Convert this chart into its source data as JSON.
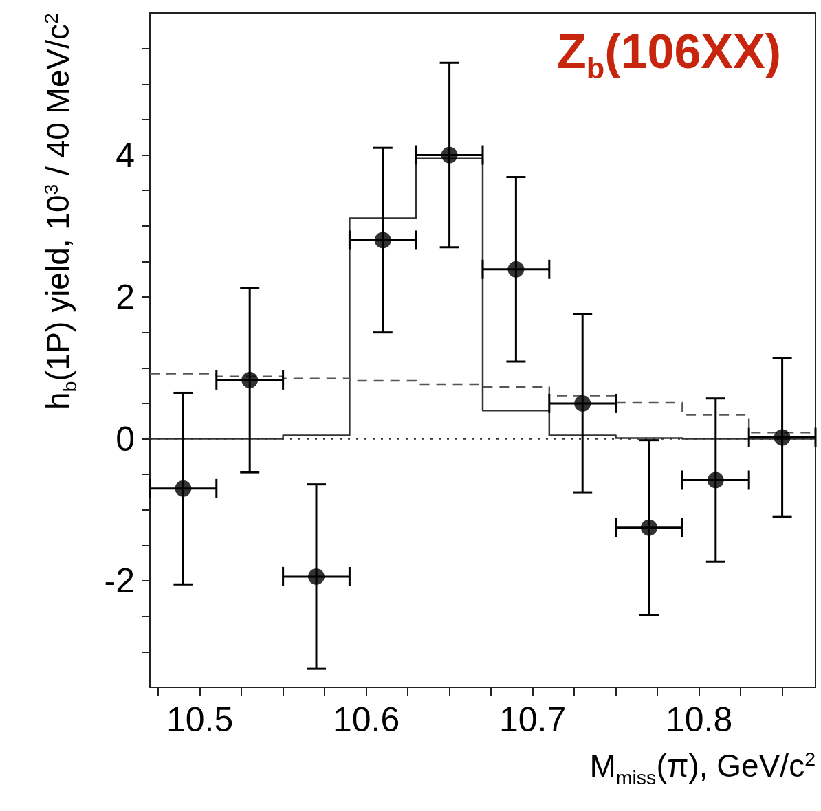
{
  "chart_data": {
    "type": "scatter",
    "xlabel": "M$_{miss}$(π), GeV/c$^{2}$",
    "ylabel": "h$_{b}$(1P) yield, 10$^{3}$ / 40 MeV/c$^{2}$",
    "annotations": [
      "Z$_{b}$(106XX)"
    ],
    "xlim": [
      10.47,
      10.87
    ],
    "ylim": [
      -3.5,
      6
    ],
    "xticks": [
      {
        "value": 10.475,
        "label": null
      },
      10.5,
      {
        "value": 10.525,
        "label": null
      },
      {
        "value": 10.55,
        "label": null
      },
      {
        "value": 10.575,
        "label": null
      },
      10.6,
      {
        "value": 10.625,
        "label": null
      },
      {
        "value": 10.65,
        "label": null
      },
      {
        "value": 10.675,
        "label": null
      },
      10.7,
      {
        "value": 10.725,
        "label": null
      },
      {
        "value": 10.75,
        "label": null
      },
      {
        "value": 10.775,
        "label": null
      },
      10.8,
      {
        "value": 10.825,
        "label": null
      },
      {
        "value": 10.85,
        "label": null
      }
    ],
    "yticks": [
      {
        "value": -3,
        "label": null
      },
      {
        "value": -2.5,
        "label": null
      },
      -2,
      {
        "value": -1.5,
        "label": null
      },
      {
        "value": -1,
        "label": null
      },
      {
        "value": -0.5,
        "label": null
      },
      0,
      {
        "value": 0.5,
        "label": null
      },
      {
        "value": 1,
        "label": null
      },
      {
        "value": 1.5,
        "label": null
      },
      2,
      {
        "value": 2.5,
        "label": null
      },
      {
        "value": 3,
        "label": null
      },
      {
        "value": 3.5,
        "label": null
      },
      4,
      {
        "value": 4.5,
        "label": null
      },
      {
        "value": 5,
        "label": null
      },
      {
        "value": 5.5,
        "label": null
      }
    ],
    "grid": false,
    "marker": "circle",
    "ref_lines": [
      {
        "axis": "y",
        "value": 0,
        "color": "#333333",
        "line_style": "dotted"
      }
    ],
    "series": [
      {
        "type": "step",
        "color": "#333333",
        "line_style": "solid",
        "marker": "none",
        "x": [
          10.47,
          10.51,
          10.55,
          10.59,
          10.63,
          10.67,
          10.71,
          10.75,
          10.79,
          10.83,
          10.87
        ],
        "values": [
          0,
          0,
          0.05,
          3.11,
          3.95,
          0.4,
          0.05,
          0.01,
          0,
          0,
          0
        ]
      },
      {
        "type": "step",
        "color": "#555555",
        "line_style": "dashed",
        "marker": "none",
        "x": [
          10.47,
          10.51,
          10.55,
          10.59,
          10.63,
          10.67,
          10.71,
          10.75,
          10.79,
          10.83,
          10.87
        ],
        "values": [
          0.92,
          0.88,
          0.85,
          0.82,
          0.77,
          0.73,
          0.61,
          0.51,
          0.34,
          0.09,
          0.09
        ]
      },
      {
        "type": "scatter",
        "color": "#000000",
        "x": [
          10.49,
          10.53,
          10.57,
          10.61,
          10.65,
          10.69,
          10.73,
          10.77,
          10.81,
          10.85
        ],
        "values": [
          -0.7,
          0.83,
          -1.94,
          2.8,
          4.0,
          2.39,
          0.5,
          -1.25,
          -0.58,
          0.02
        ],
        "errors": [
          1.35,
          1.3,
          1.3,
          1.3,
          1.3,
          1.3,
          1.26,
          1.23,
          1.15,
          1.12
        ],
        "xerrors": [
          0.02,
          0.02,
          0.02,
          0.02,
          0.02,
          0.02,
          0.02,
          0.02,
          0.02,
          0.02
        ]
      }
    ]
  }
}
